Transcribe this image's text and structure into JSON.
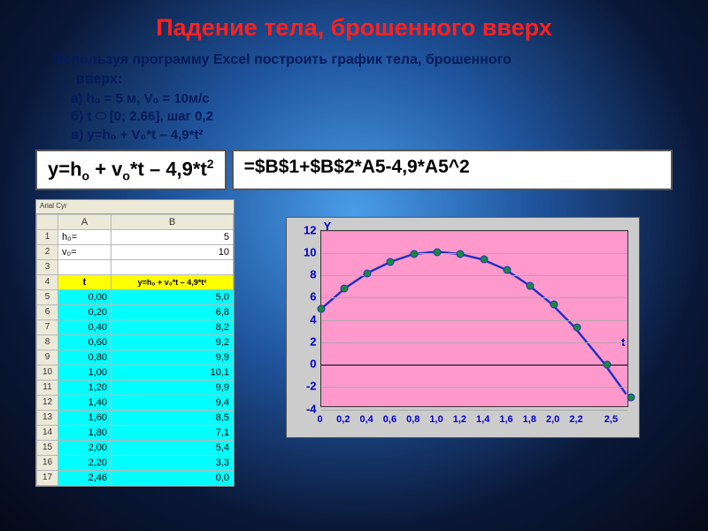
{
  "title": "Падение тела, брошенного вверх",
  "subtitle_l1": "Используя программу Excel  построить график тела, брошенного",
  "subtitle_l2": "вверх:",
  "bullets": {
    "a": "а) h₀ = 5 м,  V₀ = 10м/с",
    "b_pre": "б) t",
    "b_post": "[0; 2.66], шаг 0,2",
    "c": "в) y=h₀ + V₀*t – 4,9*t²"
  },
  "formula_left_html": "y=h<sub>o</sub> + v<sub>o</sub>*t – 4,9*t<sup>2</sup>",
  "formula_right": "=$B$1+$B$2*A5-4,9*A5^2",
  "excel": {
    "toolbar": "Arial Cyr",
    "colA": "A",
    "colB": "B",
    "row1": {
      "n": "1",
      "a": "h₀=",
      "b": "5"
    },
    "row2": {
      "n": "2",
      "a": "v₀=",
      "b": "10"
    },
    "row3": {
      "n": "3",
      "a": "",
      "b": ""
    },
    "row4": {
      "n": "4",
      "a": "t",
      "b": "y=h₀ + v₀*t – 4,9*t²"
    },
    "data_rows": [
      {
        "n": "5",
        "a": "0,00",
        "b": "5,0"
      },
      {
        "n": "6",
        "a": "0,20",
        "b": "6,8"
      },
      {
        "n": "7",
        "a": "0,40",
        "b": "8,2"
      },
      {
        "n": "8",
        "a": "0,60",
        "b": "9,2"
      },
      {
        "n": "9",
        "a": "0,80",
        "b": "9,9"
      },
      {
        "n": "10",
        "a": "1,00",
        "b": "10,1"
      },
      {
        "n": "11",
        "a": "1,20",
        "b": "9,9"
      },
      {
        "n": "12",
        "a": "1,40",
        "b": "9,4"
      },
      {
        "n": "13",
        "a": "1,60",
        "b": "8,5"
      },
      {
        "n": "14",
        "a": "1,80",
        "b": "7,1"
      },
      {
        "n": "15",
        "a": "2,00",
        "b": "5,4"
      },
      {
        "n": "16",
        "a": "2,20",
        "b": "3,3"
      },
      {
        "n": "17",
        "a": "2,46",
        "b": "0,0"
      }
    ]
  },
  "chart": {
    "y_label": "Y",
    "x_label": "t",
    "y_ticks": [
      -4,
      -2,
      0,
      2,
      4,
      6,
      8,
      10,
      12
    ],
    "x_ticks": [
      "0",
      "0,2",
      "0,4",
      "0,6",
      "0,8",
      "1,0",
      "1,2",
      "1,4",
      "1,6",
      "1,8",
      "2,0",
      "2,2",
      "2,5"
    ],
    "y_min": -4,
    "y_max": 12,
    "x_min": 0,
    "x_max": 2.66,
    "points": [
      {
        "x": 0.0,
        "y": 5.0
      },
      {
        "x": 0.2,
        "y": 6.8
      },
      {
        "x": 0.4,
        "y": 8.2
      },
      {
        "x": 0.6,
        "y": 9.2
      },
      {
        "x": 0.8,
        "y": 9.9
      },
      {
        "x": 1.0,
        "y": 10.1
      },
      {
        "x": 1.2,
        "y": 9.9
      },
      {
        "x": 1.4,
        "y": 9.4
      },
      {
        "x": 1.6,
        "y": 8.5
      },
      {
        "x": 1.8,
        "y": 7.1
      },
      {
        "x": 2.0,
        "y": 5.4
      },
      {
        "x": 2.2,
        "y": 3.3
      },
      {
        "x": 2.46,
        "y": 0.0
      },
      {
        "x": 2.66,
        "y": -2.9
      }
    ],
    "line_color": "#2030c0",
    "marker_color": "#1a8a3a",
    "bg": "#ff99cc",
    "outer_bg": "#cccccc"
  }
}
